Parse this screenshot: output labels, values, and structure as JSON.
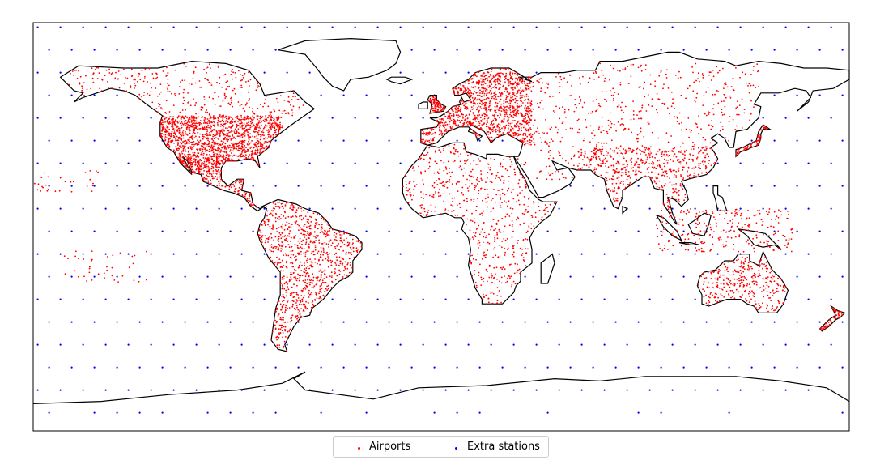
{
  "map": {
    "projection": "PlateCarree",
    "extent_deg": {
      "lon": [
        -180,
        180
      ],
      "lat": [
        -90,
        90
      ]
    },
    "land_color": "#ffffff",
    "coastline_color": "#000000"
  },
  "series": [
    {
      "name": "Airports",
      "color": "#ff0000",
      "marker": "point"
    },
    {
      "name": "Extra stations",
      "color": "#0000ff",
      "marker": "point",
      "grid_spacing_deg": 10
    }
  ],
  "legend": {
    "position": "bottom-center",
    "items": [
      {
        "label": "Airports",
        "color": "#ff0000"
      },
      {
        "label": "Extra stations",
        "color": "#0000ff"
      }
    ]
  }
}
